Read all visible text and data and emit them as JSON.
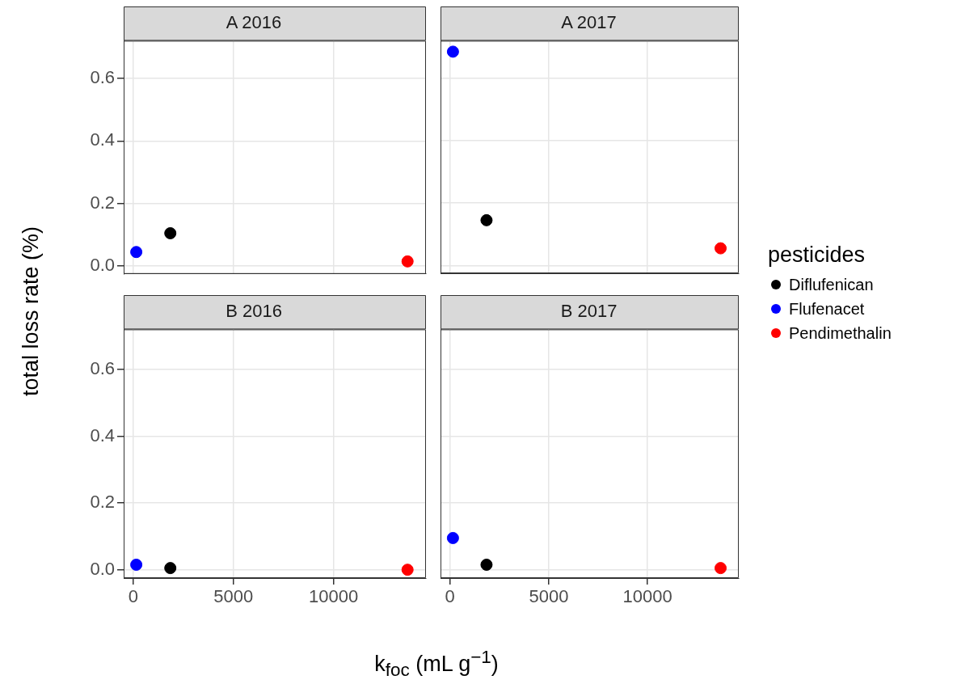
{
  "chart_data": [
    {
      "type": "scatter",
      "title": "A 2016",
      "ylabel": "total loss rate (%)",
      "xlim": [
        -480,
        14620
      ],
      "ylim": [
        -0.025,
        0.72
      ],
      "xticks": [
        0,
        5000,
        10000
      ],
      "yticks": [
        {
          "value": 0,
          "label": "0.0"
        },
        {
          "value": 0.2,
          "label": "0.2"
        },
        {
          "value": 0.4,
          "label": "0.4"
        },
        {
          "value": 0.6,
          "label": "0.6"
        }
      ],
      "grid": true,
      "marker": "circle",
      "tick_labels": "y",
      "series": [
        {
          "color": "#000000",
          "x": [
            1850
          ],
          "values": [
            0.105
          ]
        },
        {
          "color": "#0000ff",
          "x": [
            150
          ],
          "values": [
            0.045
          ]
        },
        {
          "color": "#ff0000",
          "x": [
            13700
          ],
          "values": [
            0.015
          ]
        }
      ]
    },
    {
      "type": "scatter",
      "title": "A 2017",
      "legend_title": "pesticides",
      "xlim": [
        -480,
        14620
      ],
      "ylim": [
        -0.025,
        0.72
      ],
      "xticks": [
        0,
        5000,
        10000
      ],
      "yticks": [
        0,
        0.2,
        0.4,
        0.6
      ],
      "grid": true,
      "legend": "right",
      "marker": "circle",
      "tick_labels": false,
      "series": [
        {
          "name": "Diflufenican",
          "color": "#000000",
          "x": [
            1850
          ],
          "values": [
            0.145
          ]
        },
        {
          "name": "Flufenacet",
          "color": "#0000ff",
          "x": [
            150
          ],
          "values": [
            0.685
          ]
        },
        {
          "name": "Pendimethalin",
          "color": "#ff0000",
          "x": [
            13700
          ],
          "values": [
            0.055
          ]
        }
      ]
    },
    {
      "type": "scatter",
      "title": "B 2016",
      "xlabel": "k$_{foc}$ (mL g$^{−1}$)",
      "xlim": [
        -480,
        14620
      ],
      "ylim": [
        -0.025,
        0.72
      ],
      "xticks": [
        0,
        5000,
        10000
      ],
      "yticks": [
        {
          "value": 0,
          "label": "0.0"
        },
        {
          "value": 0.2,
          "label": "0.2"
        },
        {
          "value": 0.4,
          "label": "0.4"
        },
        {
          "value": 0.6,
          "label": "0.6"
        }
      ],
      "grid": true,
      "marker": "circle",
      "series": [
        {
          "color": "#000000",
          "x": [
            1850
          ],
          "values": [
            0.005
          ]
        },
        {
          "color": "#0000ff",
          "x": [
            150
          ],
          "values": [
            0.015
          ]
        },
        {
          "color": "#ff0000",
          "x": [
            13700
          ],
          "values": [
            0.0
          ]
        }
      ]
    },
    {
      "type": "scatter",
      "title": "B 2017",
      "xlim": [
        -480,
        14620
      ],
      "ylim": [
        -0.025,
        0.72
      ],
      "xticks": [
        0,
        5000,
        10000
      ],
      "yticks": [
        0,
        0.2,
        0.4,
        0.6
      ],
      "grid": true,
      "marker": "circle",
      "tick_labels": "x",
      "series": [
        {
          "color": "#000000",
          "x": [
            1850
          ],
          "values": [
            0.015
          ]
        },
        {
          "color": "#0000ff",
          "x": [
            150
          ],
          "values": [
            0.095
          ]
        },
        {
          "color": "#ff0000",
          "x": [
            13700
          ],
          "values": [
            0.005
          ]
        }
      ]
    }
  ]
}
